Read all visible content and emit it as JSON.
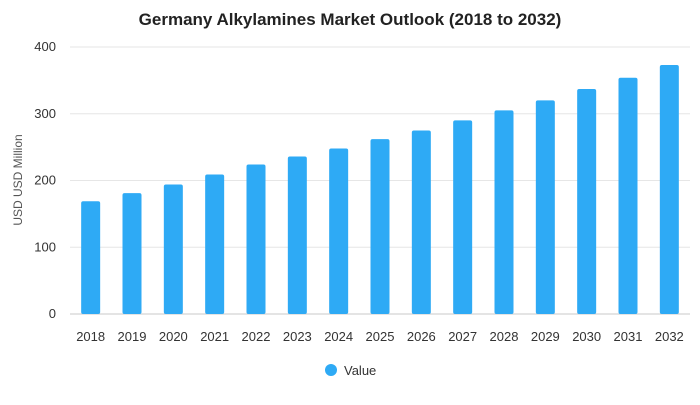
{
  "chart_data": {
    "type": "bar",
    "title": "Germany Alkylamines Market Outlook (2018 to 2032)",
    "xlabel": "",
    "ylabel": "USD USD Million",
    "ylim": [
      0,
      400
    ],
    "yticks": [
      0,
      100,
      200,
      300,
      400
    ],
    "grid": true,
    "legend_position": "bottom-center",
    "categories": [
      "2018",
      "2019",
      "2020",
      "2021",
      "2022",
      "2023",
      "2024",
      "2025",
      "2026",
      "2027",
      "2028",
      "2029",
      "2030",
      "2031",
      "2032"
    ],
    "series": [
      {
        "name": "Value",
        "color": "#2eaaf5",
        "values": [
          169,
          181,
          194,
          209,
          224,
          236,
          248,
          262,
          275,
          290,
          305,
          320,
          337,
          354,
          373
        ]
      }
    ]
  }
}
